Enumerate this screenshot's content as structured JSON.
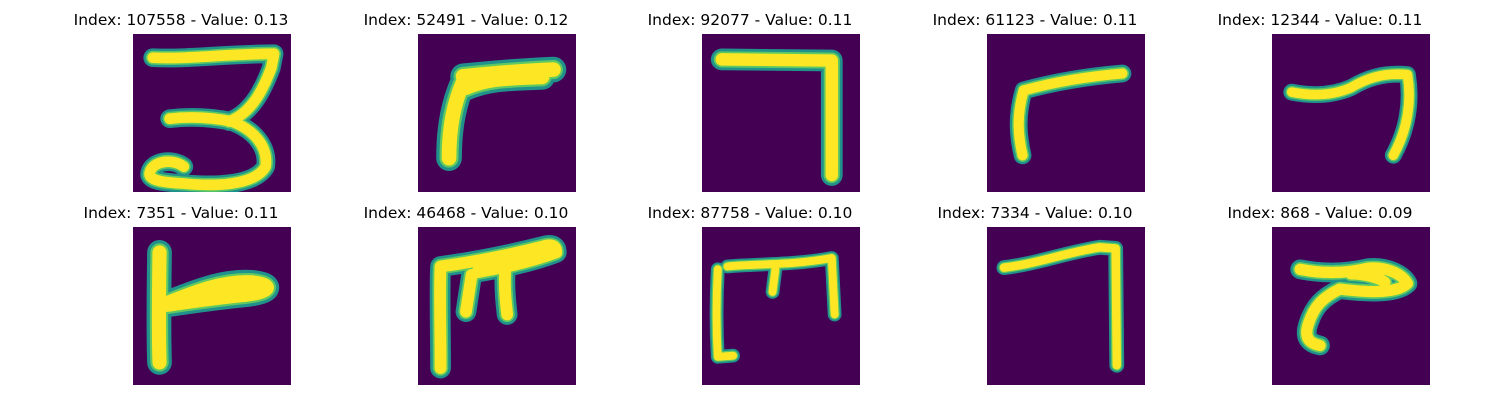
{
  "colors": {
    "background": "#440154",
    "edge": "#21918c",
    "mid": "#5ec962",
    "stroke": "#fde725"
  },
  "panels": [
    {
      "title": "Index: 107558 - Value: 0.13"
    },
    {
      "title": "Index: 52491 - Value: 0.12"
    },
    {
      "title": "Index: 92077 - Value: 0.11"
    },
    {
      "title": "Index: 61123 - Value: 0.11"
    },
    {
      "title": "Index: 12344 - Value: 0.11"
    },
    {
      "title": "Index: 7351 - Value: 0.11"
    },
    {
      "title": "Index: 46468 - Value: 0.10"
    },
    {
      "title": "Index: 87758 - Value: 0.10"
    },
    {
      "title": "Index: 7334 - Value: 0.10"
    },
    {
      "title": "Index: 868 - Value: 0.09"
    }
  ]
}
